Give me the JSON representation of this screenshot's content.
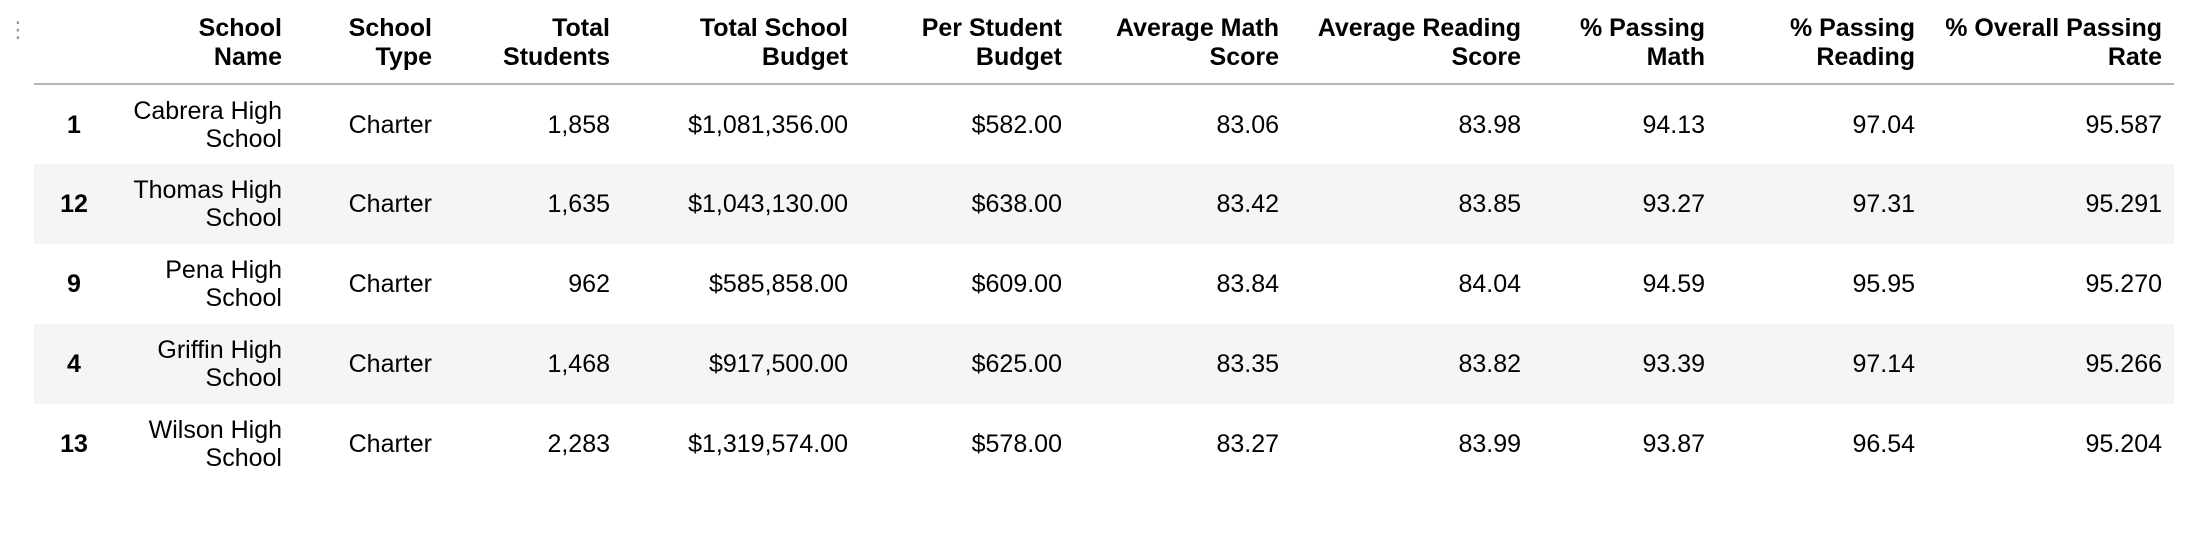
{
  "table": {
    "columns": [
      {
        "key": "index",
        "label": ""
      },
      {
        "key": "school_name",
        "label": "School Name"
      },
      {
        "key": "school_type",
        "label": "School Type"
      },
      {
        "key": "total_students",
        "label": "Total Students"
      },
      {
        "key": "total_school_budget",
        "label": "Total School Budget"
      },
      {
        "key": "per_student_budget",
        "label": "Per Student Budget"
      },
      {
        "key": "average_math_score",
        "label": "Average Math Score"
      },
      {
        "key": "average_reading_score",
        "label": "Average Reading Score"
      },
      {
        "key": "pct_passing_math",
        "label": "% Passing Math"
      },
      {
        "key": "pct_passing_reading",
        "label": "% Passing Reading"
      },
      {
        "key": "pct_overall_passing_rate",
        "label": "% Overall Passing Rate"
      }
    ],
    "rows": [
      {
        "index": "1",
        "school_name": "Cabrera High School",
        "school_type": "Charter",
        "total_students": "1,858",
        "total_school_budget": "$1,081,356.00",
        "per_student_budget": "$582.00",
        "average_math_score": "83.06",
        "average_reading_score": "83.98",
        "pct_passing_math": "94.13",
        "pct_passing_reading": "97.04",
        "pct_overall_passing_rate": "95.587"
      },
      {
        "index": "12",
        "school_name": "Thomas High School",
        "school_type": "Charter",
        "total_students": "1,635",
        "total_school_budget": "$1,043,130.00",
        "per_student_budget": "$638.00",
        "average_math_score": "83.42",
        "average_reading_score": "83.85",
        "pct_passing_math": "93.27",
        "pct_passing_reading": "97.31",
        "pct_overall_passing_rate": "95.291"
      },
      {
        "index": "9",
        "school_name": "Pena High School",
        "school_type": "Charter",
        "total_students": "962",
        "total_school_budget": "$585,858.00",
        "per_student_budget": "$609.00",
        "average_math_score": "83.84",
        "average_reading_score": "84.04",
        "pct_passing_math": "94.59",
        "pct_passing_reading": "95.95",
        "pct_overall_passing_rate": "95.270"
      },
      {
        "index": "4",
        "school_name": "Griffin High School",
        "school_type": "Charter",
        "total_students": "1,468",
        "total_school_budget": "$917,500.00",
        "per_student_budget": "$625.00",
        "average_math_score": "83.35",
        "average_reading_score": "83.82",
        "pct_passing_math": "93.39",
        "pct_passing_reading": "97.14",
        "pct_overall_passing_rate": "95.266"
      },
      {
        "index": "13",
        "school_name": "Wilson High School",
        "school_type": "Charter",
        "total_students": "2,283",
        "total_school_budget": "$1,319,574.00",
        "per_student_budget": "$578.00",
        "average_math_score": "83.27",
        "average_reading_score": "83.99",
        "pct_passing_math": "93.87",
        "pct_passing_reading": "96.54",
        "pct_overall_passing_rate": "95.204"
      }
    ]
  }
}
